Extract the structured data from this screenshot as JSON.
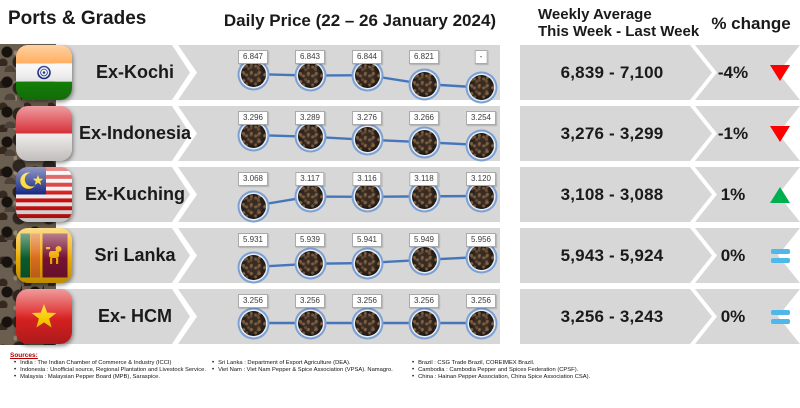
{
  "header": {
    "ports_grades": "Ports & Grades",
    "daily_price_title": "Daily Price (22 – 26 January 2024)",
    "weekly_avg_line1": "Weekly Average",
    "weekly_avg_line2": "This Week - Last Week",
    "pct_change": "% change"
  },
  "chart_data": {
    "type": "line",
    "title": "Daily Price (22 – 26 January 2024)",
    "legend_position": "none",
    "grid": false,
    "series": [
      {
        "name": "Ex-Kochi",
        "labels": [
          "6.847",
          "6.843",
          "6.844",
          "6.821",
          "-"
        ],
        "values": [
          6847,
          6843,
          6844,
          6821,
          null
        ]
      },
      {
        "name": "Ex-Indonesia",
        "labels": [
          "3.296",
          "3.289",
          "3.276",
          "3.266",
          "3.254"
        ],
        "values": [
          3296,
          3289,
          3276,
          3266,
          3254
        ]
      },
      {
        "name": "Ex-Kuching",
        "labels": [
          "3.068",
          "3.117",
          "3.116",
          "3.118",
          "3.120"
        ],
        "values": [
          3068,
          3117,
          3116,
          3118,
          3120
        ]
      },
      {
        "name": "Sri Lanka",
        "labels": [
          "5.931",
          "5.939",
          "5.941",
          "5.949",
          "5.956"
        ],
        "values": [
          5931,
          5939,
          5941,
          5949,
          5956
        ]
      },
      {
        "name": "Ex- HCM",
        "labels": [
          "3.256",
          "3.256",
          "3.256",
          "3.256",
          "3.256"
        ],
        "values": [
          3256,
          3256,
          3256,
          3256,
          3256
        ]
      }
    ]
  },
  "rows": [
    {
      "port": "Ex-Kochi",
      "flag": "india",
      "weekly_average": "6,839 - 7,100",
      "pct_change": "-4%",
      "trend": "down"
    },
    {
      "port": "Ex-Indonesia",
      "flag": "indonesia",
      "weekly_average": "3,276 - 3,299",
      "pct_change": "-1%",
      "trend": "down"
    },
    {
      "port": "Ex-Kuching",
      "flag": "malaysia",
      "weekly_average": "3,108 - 3,088",
      "pct_change": "1%",
      "trend": "up"
    },
    {
      "port": "Sri Lanka",
      "flag": "sri-lanka",
      "weekly_average": "5,943 - 5,924",
      "pct_change": "0%",
      "trend": "equal"
    },
    {
      "port": "Ex- HCM",
      "flag": "vietnam",
      "weekly_average": "3,256 - 3,243",
      "pct_change": "0%",
      "trend": "equal"
    }
  ],
  "footer": {
    "title": "Sources:",
    "columns": [
      [
        "India : The Indian Chamber of Commerce & Industry (ICCI)",
        "Indonesia : Unofficial source, Regional Plantation and Livestock Service.",
        "Malaysia : Malaysian Pepper Board (MPB), Saraspice."
      ],
      [
        "Sri Lanka : Department of Export Agriculture (DEA).",
        "Viet Nam : Viet Nam Pepper & Spice Association (VPSA). Namagro."
      ],
      [
        "Brazil : CSG Trade Brazil, COREIMEX Brazil.",
        "Cambodia : Cambodia Pepper and Spices Federation (CPSF).",
        "China : Hainan Pepper Association, China Spice Association CSA)."
      ]
    ]
  },
  "colors": {
    "band": "#d7d7d7",
    "line": "#4576bc",
    "dot_ring": "#7aa0d4",
    "down_red": "#fe0000",
    "up_green": "#00b050",
    "equal_blue": "#4fb8ea",
    "sources_title": "#b00000"
  }
}
